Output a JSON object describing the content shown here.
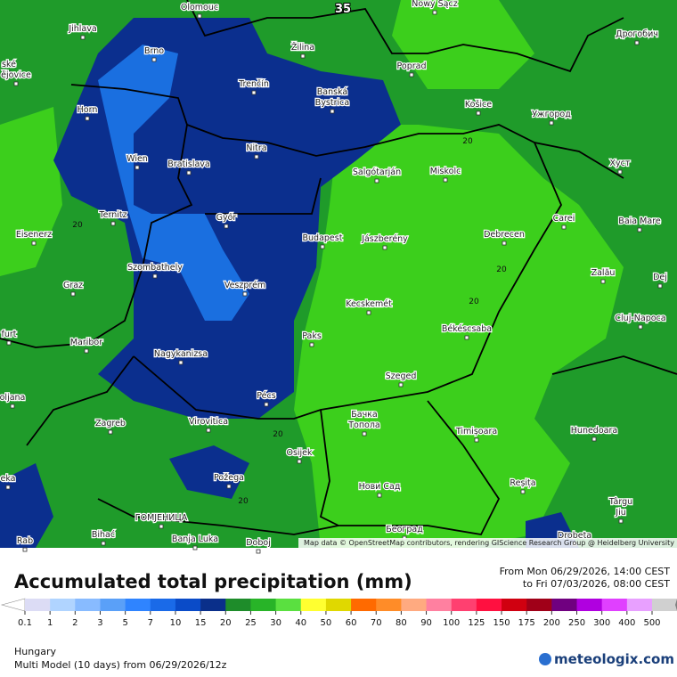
{
  "map": {
    "places": [
      "Olomouc",
      "Nowy Sącz",
      "Jihlava",
      "Žilina",
      "Дрогобич",
      "Brno",
      "Poprad",
      "ské",
      "ějovice",
      "Trenčín",
      [
        "Banská",
        "Bystrica"
      ],
      "Horn",
      "Košice",
      "Ужгород",
      "Nitra",
      "Wien",
      "Bratislava",
      "Salgótarján",
      "Miskolc",
      "Хуст",
      "Ternitz",
      "Győr",
      "Carei",
      "Baia Mare",
      "Eisenerz",
      "Budapest",
      "Jászberény",
      "Debrecen",
      "Szombathely",
      "Zalău",
      "Graz",
      "Veszprém",
      "Dej",
      "Kecskemét",
      "Cluj-Napoca",
      "Paks",
      "Békéscsaba",
      "Maribor",
      "furt",
      "Nagykanizsa",
      "Szeged",
      "oljana",
      "Pécs",
      [
        "Бачка",
        "Топола"
      ],
      "Zagreb",
      "Virovitica",
      "Timișoara",
      "Hunedoara",
      "Osijek",
      "Požega",
      "Reșița",
      "Нови Сад",
      [
        "Târgu",
        "Jiu"
      ],
      "eka",
      "ГОМЈЕНИЦА",
      "Bihać",
      "Banja Luka",
      "Doboj",
      "Београд",
      "Drobeta",
      "Rab"
    ],
    "contour_labels": [
      35,
      20,
      20,
      20,
      20,
      20,
      20
    ],
    "attribution": "Map data © OpenStreetMap contributors, rendering GIScience Research Group @ Heidelberg University"
  },
  "legend": {
    "title": "Accumulated total precipitation (mm)",
    "from": "From Mon 06/29/2026, 14:00 CEST",
    "to": "to Fri 07/03/2026, 08:00 CEST",
    "ticks": [
      0.1,
      1,
      2,
      3,
      5,
      7,
      10,
      15,
      20,
      25,
      30,
      40,
      50,
      60,
      70,
      80,
      90,
      100,
      125,
      150,
      175,
      200,
      250,
      300,
      400,
      500
    ],
    "colors": [
      "#ffffff",
      "#dcdcf5",
      "#b0d4ff",
      "#88bbff",
      "#5aa0f8",
      "#2f84ff",
      "#1a6ae8",
      "#0a4bc8",
      "#0a2f8a",
      "#1e8c2a",
      "#28b428",
      "#5ae040",
      "#ffff30",
      "#e0d800",
      "#ff6a00",
      "#ff8c28",
      "#ffaa80",
      "#ff80a0",
      "#ff4070",
      "#ff1040",
      "#d00010",
      "#a00018",
      "#700080",
      "#b000e0",
      "#e040ff",
      "#e8a0ff",
      "#d0d0d0",
      "#808080"
    ]
  },
  "footer": {
    "region": "Hungary",
    "model": "Multi Model (10 days) from 06/29/2026/12z",
    "brand": "meteologix.com"
  }
}
